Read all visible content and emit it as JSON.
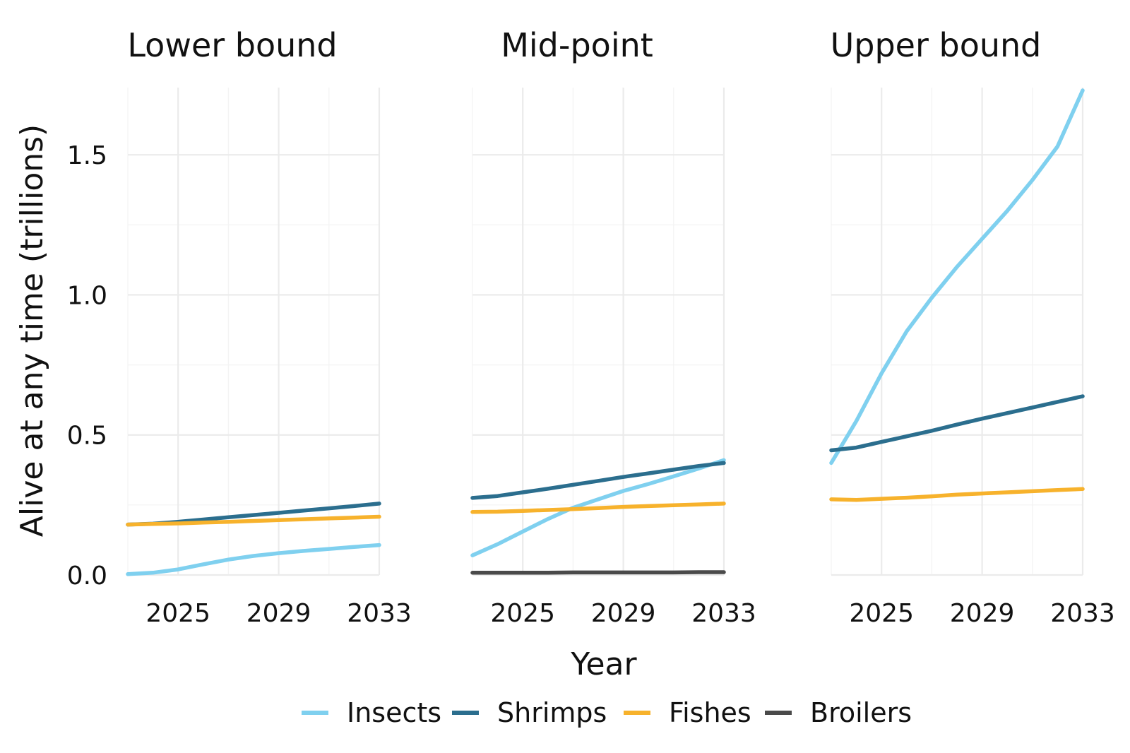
{
  "chart_data": {
    "type": "line",
    "ylabel": "Alive at any time (trillions)",
    "xlabel": "Year",
    "x_ticks": [
      2025,
      2029,
      2033
    ],
    "y_ticks": [
      0.0,
      0.5,
      1.0,
      1.5
    ],
    "y_tick_labels": [
      "0.0",
      "0.5",
      "1.0",
      "1.5"
    ],
    "xlim": [
      2023,
      2033
    ],
    "ylim": [
      0,
      1.74
    ],
    "legend_position": "bottom",
    "series_styles": [
      {
        "name": "Insects",
        "color": "#7fd0ef"
      },
      {
        "name": "Shrimps",
        "color": "#2b6e8e"
      },
      {
        "name": "Fishes",
        "color": "#f7b22c"
      },
      {
        "name": "Broilers",
        "color": "#4a4a4a"
      }
    ],
    "panels": [
      {
        "title": "Lower bound",
        "series": [
          {
            "name": "Insects",
            "x": [
              2023,
              2024,
              2025,
              2026,
              2027,
              2028,
              2029,
              2030,
              2031,
              2032,
              2033
            ],
            "y": [
              0.003,
              0.008,
              0.02,
              0.038,
              0.055,
              0.068,
              0.078,
              0.086,
              0.093,
              0.1,
              0.107
            ]
          },
          {
            "name": "Shrimps",
            "x": [
              2023,
              2024,
              2025,
              2026,
              2027,
              2028,
              2029,
              2030,
              2031,
              2032,
              2033
            ],
            "y": [
              0.18,
              0.183,
              0.19,
              0.198,
              0.206,
              0.214,
              0.222,
              0.23,
              0.238,
              0.246,
              0.255
            ]
          },
          {
            "name": "Fishes",
            "x": [
              2023,
              2024,
              2025,
              2026,
              2027,
              2028,
              2029,
              2030,
              2031,
              2032,
              2033
            ],
            "y": [
              0.18,
              0.182,
              0.184,
              0.187,
              0.19,
              0.193,
              0.196,
              0.199,
              0.202,
              0.205,
              0.208
            ]
          }
        ]
      },
      {
        "title": "Mid-point",
        "series": [
          {
            "name": "Insects",
            "x": [
              2023,
              2024,
              2025,
              2026,
              2027,
              2028,
              2029,
              2030,
              2031,
              2032,
              2033
            ],
            "y": [
              0.07,
              0.11,
              0.155,
              0.2,
              0.24,
              0.27,
              0.3,
              0.325,
              0.352,
              0.38,
              0.41
            ]
          },
          {
            "name": "Shrimps",
            "x": [
              2023,
              2024,
              2025,
              2026,
              2027,
              2028,
              2029,
              2030,
              2031,
              2032,
              2033
            ],
            "y": [
              0.275,
              0.282,
              0.295,
              0.308,
              0.322,
              0.336,
              0.35,
              0.363,
              0.376,
              0.389,
              0.4
            ]
          },
          {
            "name": "Fishes",
            "x": [
              2023,
              2024,
              2025,
              2026,
              2027,
              2028,
              2029,
              2030,
              2031,
              2032,
              2033
            ],
            "y": [
              0.225,
              0.226,
              0.229,
              0.232,
              0.235,
              0.239,
              0.243,
              0.246,
              0.249,
              0.252,
              0.255
            ]
          },
          {
            "name": "Broilers",
            "x": [
              2023,
              2024,
              2025,
              2026,
              2027,
              2028,
              2029,
              2030,
              2031,
              2032,
              2033
            ],
            "y": [
              0.008,
              0.008,
              0.008,
              0.008,
              0.009,
              0.009,
              0.009,
              0.009,
              0.009,
              0.01,
              0.01
            ]
          }
        ]
      },
      {
        "title": "Upper bound",
        "series": [
          {
            "name": "Insects",
            "x": [
              2023,
              2024,
              2025,
              2026,
              2027,
              2028,
              2029,
              2030,
              2031,
              2032,
              2033
            ],
            "y": [
              0.4,
              0.55,
              0.72,
              0.87,
              0.99,
              1.1,
              1.2,
              1.3,
              1.41,
              1.53,
              1.73
            ]
          },
          {
            "name": "Shrimps",
            "x": [
              2023,
              2024,
              2025,
              2026,
              2027,
              2028,
              2029,
              2030,
              2031,
              2032,
              2033
            ],
            "y": [
              0.445,
              0.455,
              0.475,
              0.495,
              0.515,
              0.537,
              0.558,
              0.578,
              0.598,
              0.618,
              0.638
            ]
          },
          {
            "name": "Fishes",
            "x": [
              2023,
              2024,
              2025,
              2026,
              2027,
              2028,
              2029,
              2030,
              2031,
              2032,
              2033
            ],
            "y": [
              0.27,
              0.268,
              0.272,
              0.276,
              0.281,
              0.287,
              0.291,
              0.295,
              0.299,
              0.303,
              0.307
            ]
          }
        ]
      }
    ]
  }
}
